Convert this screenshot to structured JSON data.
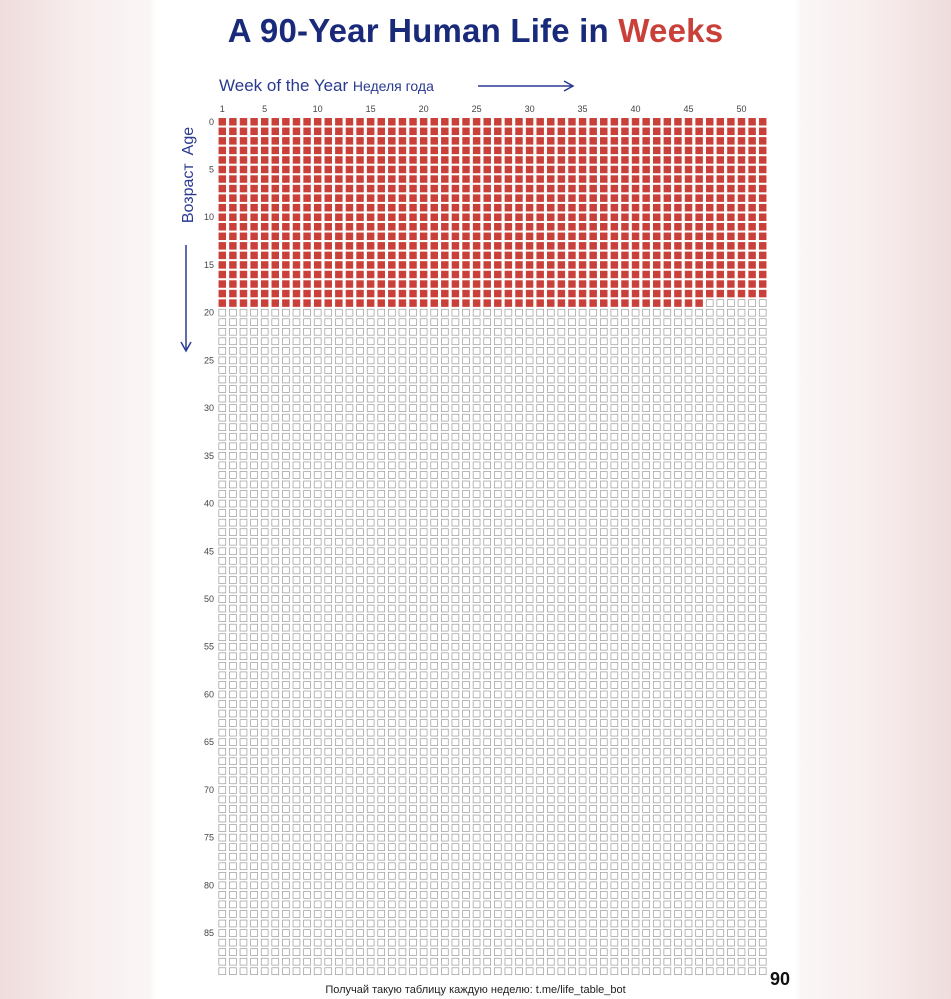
{
  "title": {
    "main": "A 90-Year Human Life in ",
    "accent": "Weeks"
  },
  "x_axis": {
    "label_en": "Week of the Year",
    "label_ru": "Неделя года"
  },
  "y_axis": {
    "label_en": "Age",
    "label_ru": "Возраст"
  },
  "end_label": "90",
  "footer": "Получай такую таблицу каждую неделю: t.me/life_table_bot",
  "colors": {
    "title": "#1a2a7a",
    "accent": "#c9403a",
    "lived": "#c9403a",
    "remaining_border": "#9a9a9a",
    "axis_text": "#2a3a90"
  },
  "chart_data": {
    "type": "heatmap",
    "title": "A 90-Year Human Life in Weeks",
    "xlabel": "Week of the Year Неделя года",
    "ylabel": "Age Возраст",
    "columns": 52,
    "rows": 90,
    "x_ticks": [
      1,
      5,
      10,
      15,
      20,
      25,
      30,
      35,
      40,
      45,
      50
    ],
    "y_ticks": [
      0,
      5,
      10,
      15,
      20,
      25,
      30,
      35,
      40,
      45,
      50,
      55,
      60,
      65,
      70,
      75,
      80,
      85
    ],
    "lived_full_years": 19,
    "lived_weeks_in_current_year": 46,
    "total_weeks_lived": 1034,
    "legend": []
  }
}
